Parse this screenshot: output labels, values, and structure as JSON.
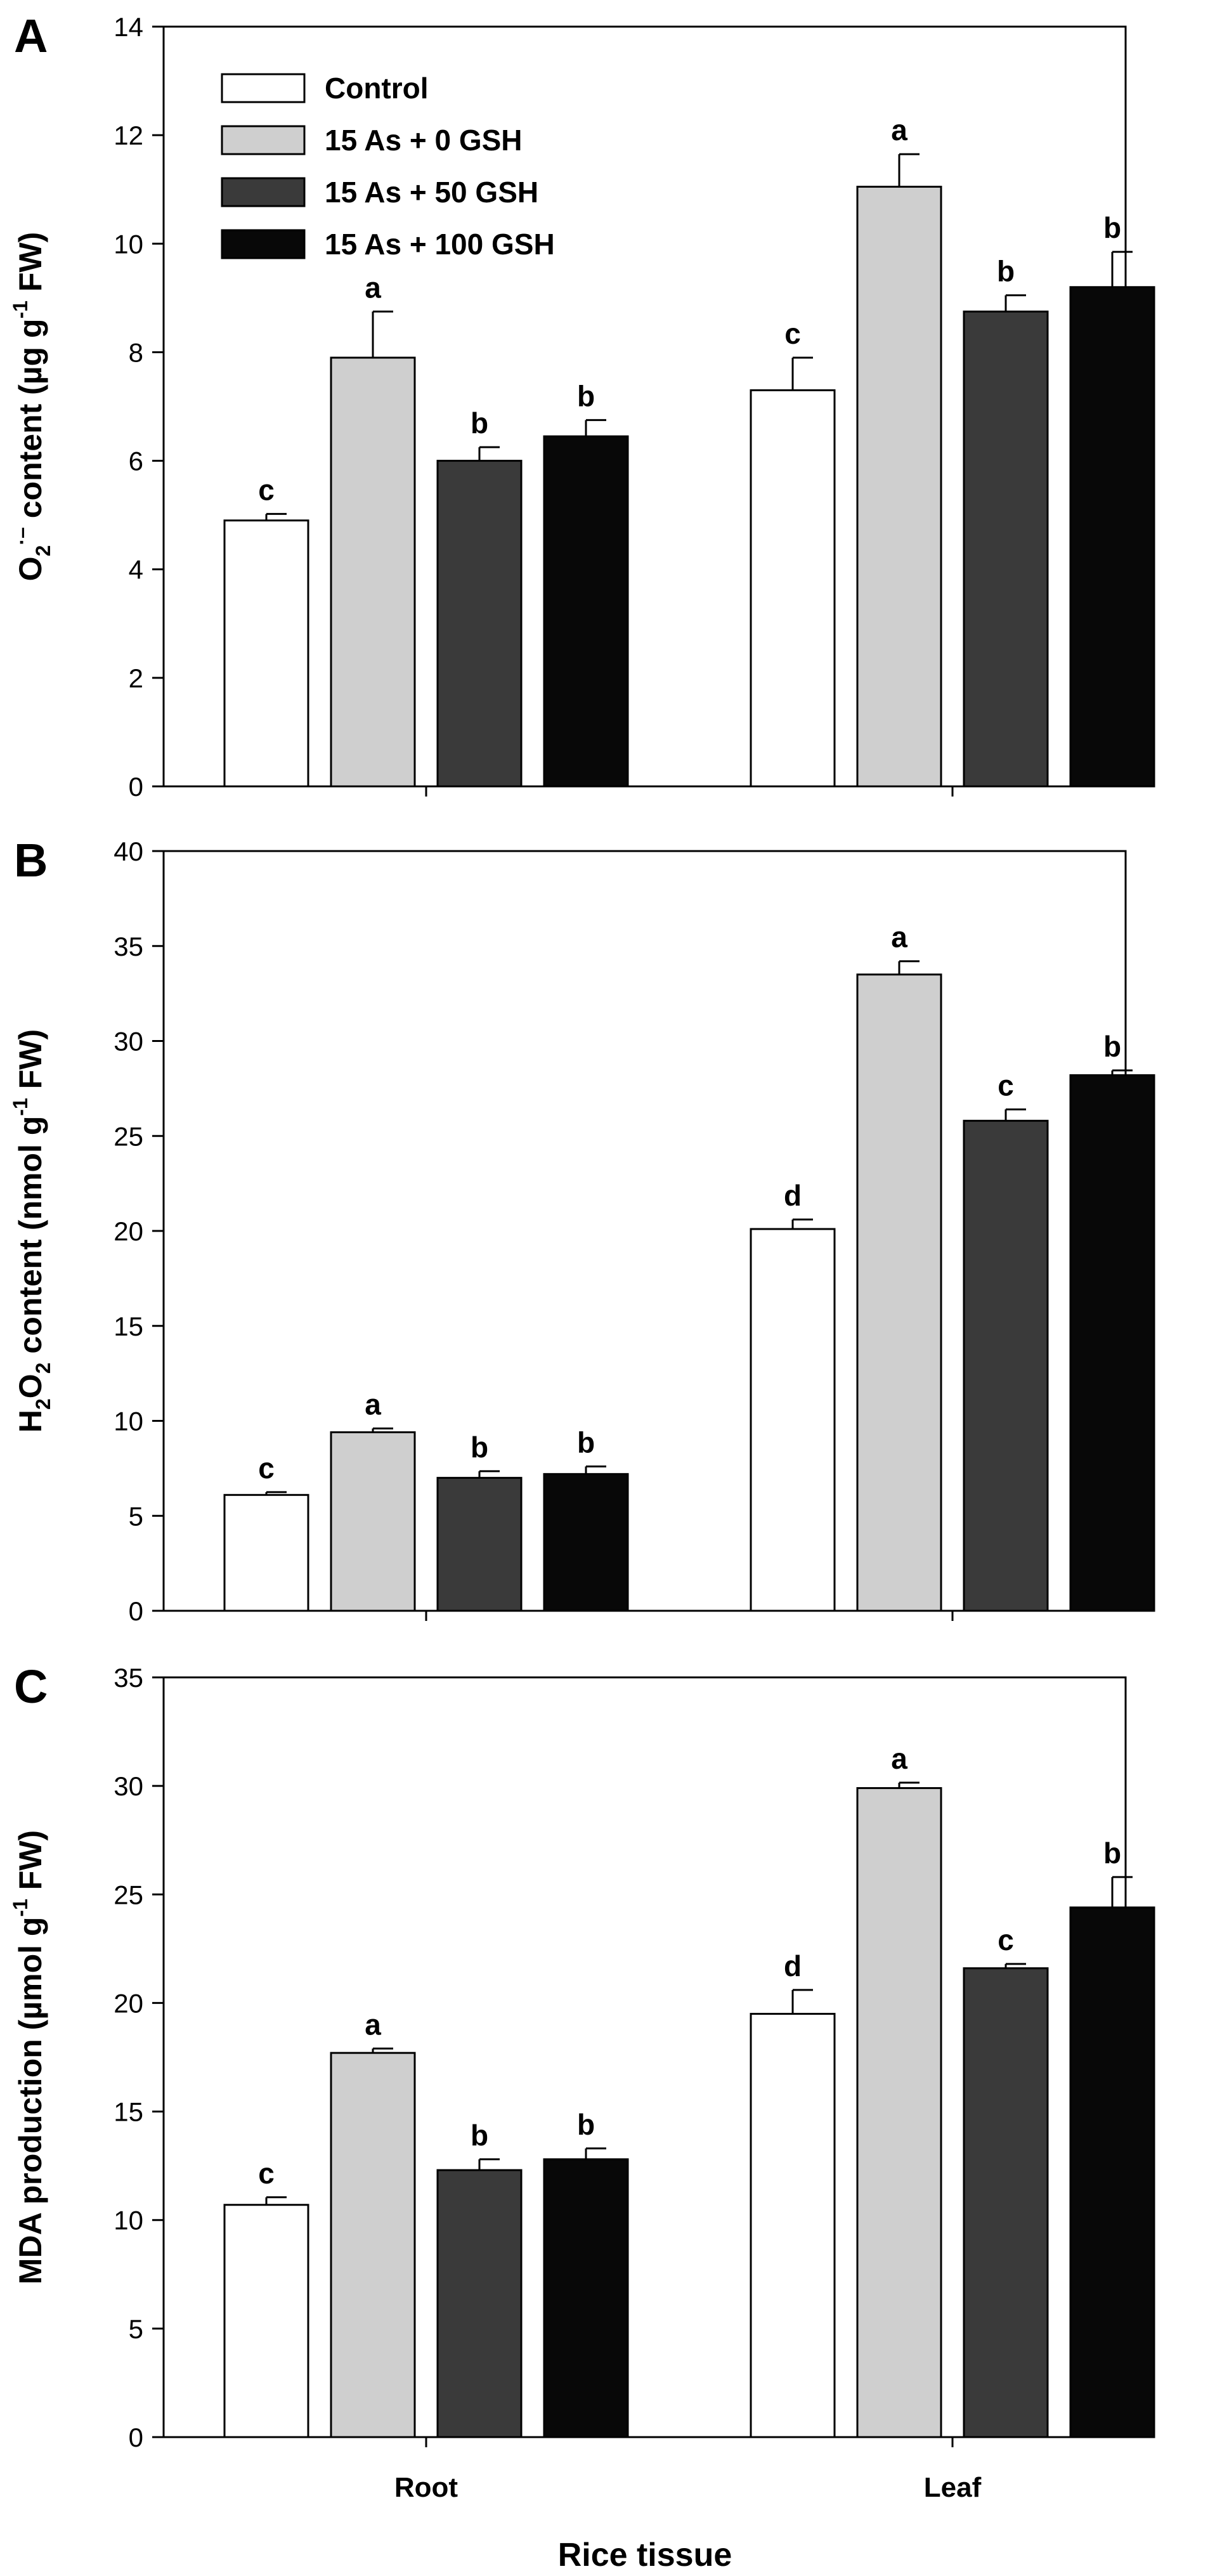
{
  "chart_data": {
    "type": "bar",
    "categories": [
      "Root",
      "Leaf"
    ],
    "xlabel": "Rice tissue",
    "series_colors": [
      "#ffffff",
      "#cfcfcf",
      "#3a3a3a",
      "#080808"
    ],
    "legend": {
      "placement": "top-left",
      "entries": [
        "Control",
        "15 As + 0 GSH",
        "15 As + 50 GSH",
        "15 As + 100 GSH"
      ]
    },
    "panels": [
      {
        "letter": "A",
        "ylabel": {
          "pre": "O",
          "sub": "2",
          "sup": "·–",
          "mid": " content (µg g",
          "sup2": "-1",
          "post": " FW)"
        },
        "ylim": [
          0,
          14
        ],
        "yticks": [
          "0",
          "2",
          "4",
          "6",
          "8",
          "10",
          "12",
          "14"
        ],
        "series": [
          {
            "name": "Control",
            "values": [
              4.9,
              7.3
            ],
            "errors": [
              0.12,
              0.6
            ],
            "letters": [
              "c",
              "c"
            ]
          },
          {
            "name": "15 As + 0 GSH",
            "values": [
              7.9,
              11.05
            ],
            "errors": [
              0.85,
              0.6
            ],
            "letters": [
              "a",
              "a"
            ]
          },
          {
            "name": "15 As + 50 GSH",
            "values": [
              6.0,
              8.75
            ],
            "errors": [
              0.25,
              0.3
            ],
            "letters": [
              "b",
              "b"
            ]
          },
          {
            "name": "15 As + 100 GSH",
            "values": [
              6.45,
              9.2
            ],
            "errors": [
              0.3,
              0.65
            ],
            "letters": [
              "b",
              "b"
            ]
          }
        ]
      },
      {
        "letter": "B",
        "ylabel": {
          "pre": "H",
          "sub": "2",
          "mid1": "O",
          "sub2": "2",
          "mid": " content (nmol g",
          "sup2": "-1",
          "post": " FW)"
        },
        "ylim": [
          0,
          40
        ],
        "yticks": [
          "0",
          "5",
          "10",
          "15",
          "20",
          "25",
          "30",
          "35",
          "40"
        ],
        "series": [
          {
            "name": "Control",
            "values": [
              6.1,
              20.1
            ],
            "errors": [
              0.15,
              0.5
            ],
            "letters": [
              "c",
              "d"
            ]
          },
          {
            "name": "15 As + 0 GSH",
            "values": [
              9.4,
              33.5
            ],
            "errors": [
              0.2,
              0.7
            ],
            "letters": [
              "a",
              "a"
            ]
          },
          {
            "name": "15 As + 50 GSH",
            "values": [
              7.0,
              25.8
            ],
            "errors": [
              0.35,
              0.6
            ],
            "letters": [
              "b",
              "c"
            ]
          },
          {
            "name": "15 As + 100 GSH",
            "values": [
              7.2,
              28.2
            ],
            "errors": [
              0.4,
              0.25
            ],
            "letters": [
              "b",
              "b"
            ]
          }
        ]
      },
      {
        "letter": "C",
        "ylabel": {
          "pre": "MDA production (µmol g",
          "sup2": "-1",
          "post": " FW)"
        },
        "ylim": [
          0,
          35
        ],
        "yticks": [
          "0",
          "5",
          "10",
          "15",
          "20",
          "25",
          "30",
          "35"
        ],
        "series": [
          {
            "name": "Control",
            "values": [
              10.7,
              19.5
            ],
            "errors": [
              0.35,
              1.1
            ],
            "letters": [
              "c",
              "d"
            ]
          },
          {
            "name": "15 As + 0 GSH",
            "values": [
              17.7,
              29.9
            ],
            "errors": [
              0.2,
              0.25
            ],
            "letters": [
              "a",
              "a"
            ]
          },
          {
            "name": "15 As + 50 GSH",
            "values": [
              12.3,
              21.6
            ],
            "errors": [
              0.5,
              0.2
            ],
            "letters": [
              "b",
              "c"
            ]
          },
          {
            "name": "15 As + 100 GSH",
            "values": [
              12.8,
              24.4
            ],
            "errors": [
              0.5,
              1.4
            ],
            "letters": [
              "b",
              "b"
            ]
          }
        ]
      }
    ]
  }
}
